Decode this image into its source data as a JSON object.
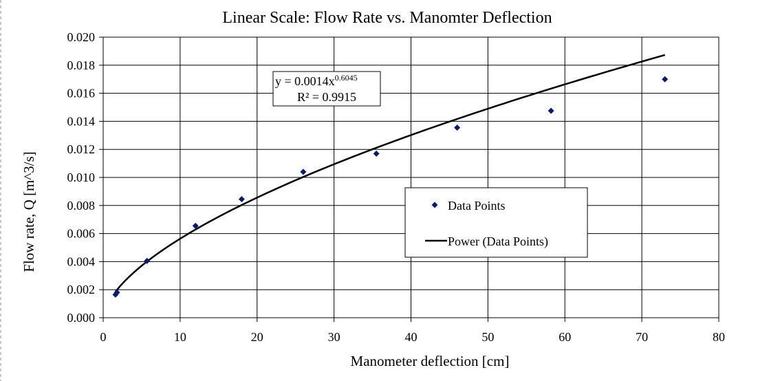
{
  "chart_data": {
    "type": "scatter",
    "title": "Linear Scale: Flow Rate vs. Manomter Deflection",
    "xlabel": "Manometer deflection [cm]",
    "ylabel": "Flow rate, Q [m^3/s]",
    "xlim": [
      0,
      80
    ],
    "ylim": [
      0,
      0.02
    ],
    "grid": true,
    "x_ticks": [
      0,
      10,
      20,
      30,
      40,
      50,
      60,
      70,
      80
    ],
    "x_tick_labels": [
      "0",
      "10",
      "20",
      "30",
      "40",
      "50",
      "60",
      "70",
      "80"
    ],
    "y_ticks": [
      0,
      0.002,
      0.004,
      0.006,
      0.008,
      0.01,
      0.012,
      0.014,
      0.016,
      0.018,
      0.02
    ],
    "y_tick_labels": [
      "0.000",
      "0.002",
      "0.004",
      "0.006",
      "0.008",
      "0.010",
      "0.012",
      "0.014",
      "0.016",
      "0.018",
      "0.020"
    ],
    "series": [
      {
        "name": "Data Points",
        "kind": "scatter",
        "marker": "diamond",
        "color": "#0a1a6e",
        "x": [
          1.6,
          1.8,
          5.7,
          12.0,
          18.0,
          26.0,
          35.5,
          46.0,
          58.2,
          73.0
        ],
        "y": [
          0.00165,
          0.0018,
          0.00405,
          0.00655,
          0.00845,
          0.0104,
          0.0117,
          0.01355,
          0.01475,
          0.017
        ]
      },
      {
        "name": "Power (Data Points)",
        "kind": "trendline",
        "model": "power",
        "color": "#000000",
        "coefficient": 0.0014,
        "exponent": 0.6045,
        "x_range": [
          1.6,
          73.0
        ]
      }
    ],
    "trendline_label": {
      "equation_prefix": "y = 0.0014x",
      "equation_exponent": "0.6045",
      "r_squared": "R² = 0.9915"
    },
    "legend": {
      "position": "center-right",
      "entries": [
        "Data Points",
        "Power (Data Points)"
      ]
    }
  }
}
